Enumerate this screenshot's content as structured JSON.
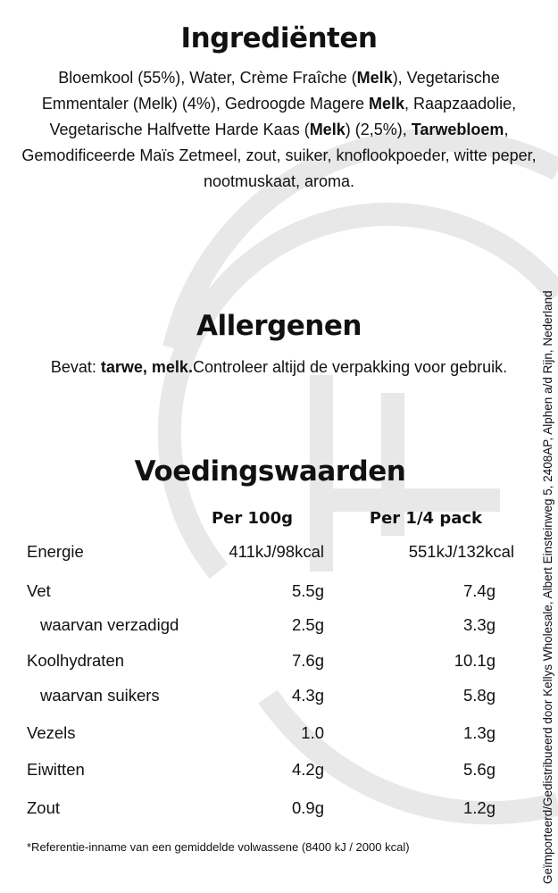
{
  "ingredients": {
    "title": "Ingrediënten",
    "segments": [
      {
        "text": "Bloemkool (55%), Water, Crème Fraîche (",
        "bold": false
      },
      {
        "text": "Melk",
        "bold": true
      },
      {
        "text": "), Vegetarische Emmentaler (Melk) (4%), Gedroogde Magere ",
        "bold": false
      },
      {
        "text": "Melk",
        "bold": true
      },
      {
        "text": ", Raapzaadolie, Vegetarische Halfvette Harde Kaas (",
        "bold": false
      },
      {
        "text": "Melk",
        "bold": true
      },
      {
        "text": ") (2,5%), ",
        "bold": false
      },
      {
        "text": "Tarwebloem",
        "bold": true
      },
      {
        "text": ", Gemodificeerde Maïs Zetmeel, zout, suiker, knoflookpoeder, witte peper, nootmuskaat, aroma.",
        "bold": false
      }
    ]
  },
  "allergens": {
    "title": "Allergenen",
    "prefix": "Bevat: ",
    "bold": "tarwe, melk.",
    "suffix": "Controleer altijd de verpakking voor gebruik."
  },
  "nutrition": {
    "title": "Voedingswaarden",
    "headers": [
      "Per 100g",
      "Per 1/4 pack"
    ],
    "rows": [
      {
        "label": "Energie",
        "per100g": "411kJ/98kcal",
        "perpack": "551kJ/132kcal",
        "sub": false
      },
      {
        "label": "Vet",
        "per100g": "5.5g",
        "perpack": "7.4g",
        "sub": false
      },
      {
        "label": "waarvan verzadigd",
        "per100g": "2.5g",
        "perpack": "3.3g",
        "sub": true
      },
      {
        "label": "Koolhydraten",
        "per100g": "7.6g",
        "perpack": "10.1g",
        "sub": false
      },
      {
        "label": "waarvan suikers",
        "per100g": "4.3g",
        "perpack": "5.8g",
        "sub": true
      },
      {
        "label": "Vezels",
        "per100g": "1.0",
        "perpack": "1.3g",
        "sub": false
      },
      {
        "label": "Eiwitten",
        "per100g": "4.2g",
        "perpack": "5.6g",
        "sub": false
      },
      {
        "label": "Zout",
        "per100g": "0.9g",
        "perpack": "1.2g",
        "sub": false
      }
    ],
    "footnote": "*Referentie-inname van een gemiddelde volwassene (8400 kJ / 2000 kcal)"
  },
  "side_text": "Geïmporteerd/Gedistribueerd door Kellys Wholesale, Albert Einsteinweg 5, 2408AP, Alphen a/d Rijn, Nederland",
  "colors": {
    "text": "#111111",
    "watermark": "#e8e8e8"
  }
}
